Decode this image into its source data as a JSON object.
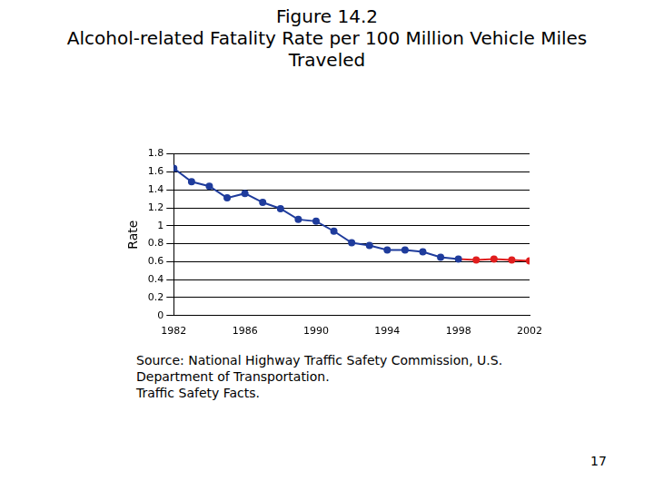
{
  "chart_data": {
    "type": "line",
    "title": "Figure 14.2",
    "subtitle": "Alcohol-related Fatality Rate per 100 Million Vehicle Miles Traveled",
    "y_label": "Rate",
    "annotations": [
      "Source: National Highway Traffic Safety Commission, U.S.",
      "Department of Transportation.",
      "Traffic Safety Facts."
    ],
    "x": [
      1982,
      1983,
      1984,
      1985,
      1986,
      1987,
      1988,
      1989,
      1990,
      1991,
      1992,
      1993,
      1994,
      1995,
      1996,
      1997,
      1998,
      1999,
      2000,
      2001,
      2002
    ],
    "values": [
      1.64,
      1.49,
      1.44,
      1.31,
      1.36,
      1.26,
      1.19,
      1.07,
      1.05,
      0.94,
      0.81,
      0.78,
      0.73,
      0.73,
      0.71,
      0.65,
      0.63,
      0.62,
      0.63,
      0.62,
      0.61
    ],
    "colors": [
      "#1f3c9c",
      "#1f3c9c",
      "#1f3c9c",
      "#1f3c9c",
      "#1f3c9c",
      "#1f3c9c",
      "#1f3c9c",
      "#1f3c9c",
      "#1f3c9c",
      "#1f3c9c",
      "#1f3c9c",
      "#1f3c9c",
      "#1f3c9c",
      "#1f3c9c",
      "#1f3c9c",
      "#1f3c9c",
      "#1f3c9c",
      "#e01e1e",
      "#e01e1e",
      "#e01e1e",
      "#e01e1e"
    ],
    "xlim": [
      1982,
      2002
    ],
    "xticks": [
      1982,
      1986,
      1990,
      1994,
      1998,
      2002
    ],
    "ylim": [
      0,
      1.8
    ],
    "yticks": [
      0,
      0.2,
      0.4,
      0.6,
      0.8,
      1,
      1.2,
      1.4,
      1.6,
      1.8
    ],
    "grid": true,
    "marker": "circle",
    "line_style": "solid"
  },
  "page_number": 17
}
